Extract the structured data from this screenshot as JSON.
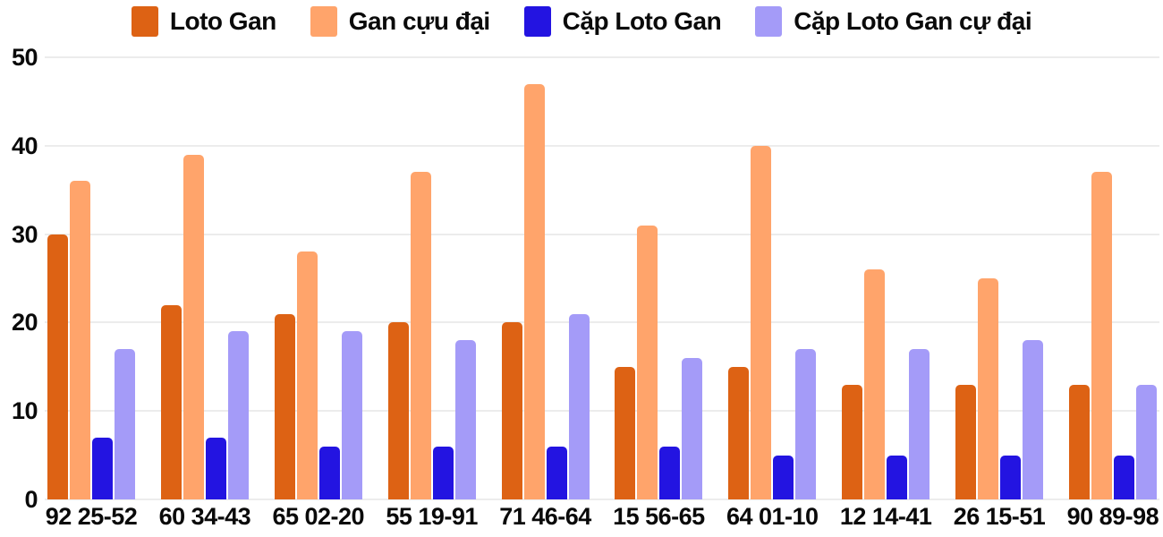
{
  "colors": {
    "background": "#ffffff",
    "gridline": "#ececec",
    "text": "#0a0a0a",
    "series_loto_gan": "#dd6214",
    "series_gan_cuu_dai": "#ffa46b",
    "series_cap_loto_gan": "#2314e1",
    "series_cap_loto_gan_cu_dai": "#a49bf8"
  },
  "chart_data": {
    "type": "bar",
    "title": "",
    "xlabel": "",
    "ylabel": "",
    "categories": [
      "92 25-52",
      "60 34-43",
      "65 02-20",
      "55 19-91",
      "71 46-64",
      "15 56-65",
      "64 01-10",
      "12 14-41",
      "26 15-51",
      "90 89-98"
    ],
    "series": [
      {
        "name": "Loto Gan",
        "color": "#dd6214",
        "values": [
          30,
          22,
          21,
          20,
          20,
          15,
          15,
          13,
          13,
          13
        ]
      },
      {
        "name": "Gan cựu đại",
        "color": "#ffa46b",
        "values": [
          36,
          39,
          28,
          37,
          47,
          31,
          40,
          26,
          25,
          37
        ]
      },
      {
        "name": "Cặp Loto Gan",
        "color": "#2314e1",
        "values": [
          7,
          7,
          6,
          6,
          6,
          6,
          5,
          5,
          5,
          5
        ]
      },
      {
        "name": "Cặp Loto Gan cự đại",
        "color": "#a49bf8",
        "values": [
          17,
          19,
          19,
          18,
          21,
          16,
          17,
          17,
          18,
          13
        ]
      }
    ],
    "ylim": [
      0,
      50
    ],
    "yticks": [
      0,
      10,
      20,
      30,
      40,
      50
    ],
    "grid": true,
    "legend_position": "top"
  }
}
